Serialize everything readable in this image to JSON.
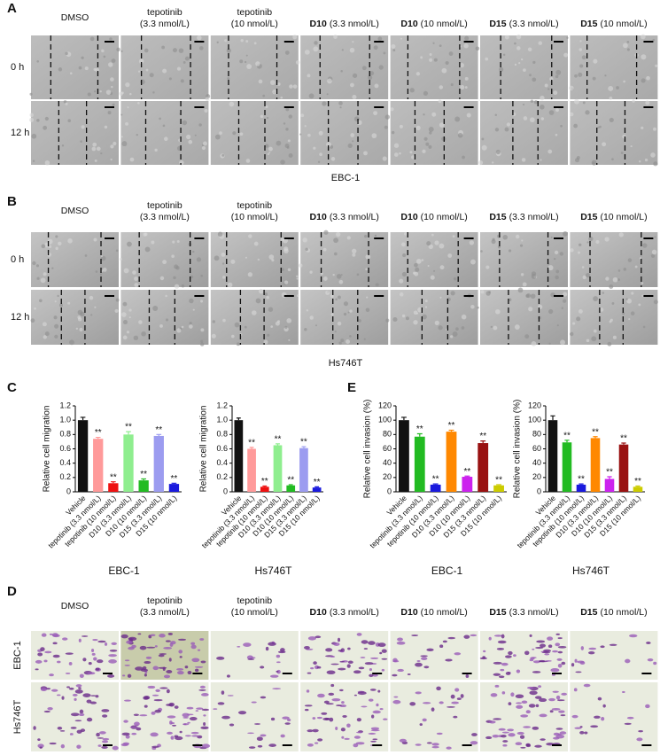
{
  "panel_a": {
    "label": "A",
    "headers": [
      {
        "text": "DMSO"
      },
      {
        "lines": [
          "tepotinib",
          "(3.3 nmol/L)"
        ]
      },
      {
        "lines": [
          "tepotinib",
          "(10 nmol/L)"
        ]
      },
      {
        "strong": "D10",
        "text": "(3.3 nmol/L)"
      },
      {
        "strong": "D10",
        "text": "(10 nmol/L)"
      },
      {
        "strong": "D15",
        "text": "(3.3 nmol/L)"
      },
      {
        "strong": "D15",
        "text": "(10 nmol/L)"
      }
    ],
    "rows": [
      "0 h",
      "12 h"
    ],
    "caption": "EBC-1"
  },
  "panel_b": {
    "label": "B",
    "headers": [
      {
        "text": "DMSO"
      },
      {
        "lines": [
          "tepotinib",
          "(3.3 nmol/L)"
        ]
      },
      {
        "lines": [
          "tepotinib",
          "(10 nmol/L)"
        ]
      },
      {
        "strong": "D10",
        "text": "(3.3 nmol/L)"
      },
      {
        "strong": "D10",
        "text": "(10 nmol/L)"
      },
      {
        "strong": "D15",
        "text": "(3.3 nmol/L)"
      },
      {
        "strong": "D15",
        "text": "(10 nmol/L)"
      }
    ],
    "rows": [
      "0 h",
      "12 h"
    ],
    "caption": "Hs746T"
  },
  "panel_c_label": "C",
  "panel_e_label": "E",
  "chart_data": [
    {
      "type": "bar",
      "ylabel": "Relative cell migration",
      "xlabel": "EBC-1",
      "categories": [
        "Vehicle",
        "tepotinib (3.3 nmol/L)",
        "tepotinib (10 nmol/L)",
        "D10 (3.3 nmol/L)",
        "D10 (10 nmol/L)",
        "D15 (3.3 nmol/L)",
        "D15 (10 nmol/L)"
      ],
      "values": [
        1.0,
        0.74,
        0.12,
        0.8,
        0.16,
        0.78,
        0.11
      ],
      "errors": [
        0.04,
        0.02,
        0.02,
        0.04,
        0.02,
        0.02,
        0.01
      ],
      "colors": [
        "#111111",
        "#ff9a9a",
        "#ee1111",
        "#8fee8f",
        "#22bb22",
        "#9c9cf0",
        "#1a1add"
      ],
      "annotations": [
        null,
        "**",
        "**",
        "**",
        "**",
        "**",
        "**"
      ],
      "ylim": [
        0,
        1.2
      ],
      "yticks": [
        0,
        0.2,
        0.4,
        0.6,
        0.8,
        {
          "value": 1,
          "label": "1.0"
        },
        1.2
      ]
    },
    {
      "type": "bar",
      "ylabel": "Relative cell migration",
      "xlabel": "Hs746T",
      "categories": [
        "Vehicle",
        "tepotinib (3.3 nmol/L)",
        "tepotinib (10 nmol/L)",
        "D10 (3.3 nmol/L)",
        "D10 (10 nmol/L)",
        "D15 (3.3 nmol/L)",
        "D15 (10 nmol/L)"
      ],
      "values": [
        1.0,
        0.6,
        0.07,
        0.65,
        0.09,
        0.61,
        0.06
      ],
      "errors": [
        0.03,
        0.02,
        0.01,
        0.02,
        0.01,
        0.02,
        0.01
      ],
      "colors": [
        "#111111",
        "#ff9a9a",
        "#ee1111",
        "#8fee8f",
        "#22bb22",
        "#9c9cf0",
        "#1a1add"
      ],
      "annotations": [
        null,
        "**",
        "**",
        "**",
        "**",
        "**",
        "**"
      ],
      "ylim": [
        0,
        1.2
      ],
      "yticks": [
        0,
        0.2,
        0.4,
        0.6,
        0.8,
        {
          "value": 1,
          "label": "1.0"
        },
        1.2
      ]
    },
    {
      "type": "bar",
      "ylabel": "Relative cell invasion (%)",
      "xlabel": "EBC-1",
      "categories": [
        "Vehicle",
        "tepotinib (3.3 nmol/L)",
        "tepotinib (10 nmol/L)",
        "D10 (3.3 nmol/L)",
        "D10 (10 nmol/L)",
        "D15 (3.3 nmol/L)",
        "D15 (10 nmol/L)"
      ],
      "values": [
        100,
        77,
        10,
        84,
        21,
        68,
        9
      ],
      "errors": [
        4,
        4,
        1,
        2,
        1,
        3,
        1
      ],
      "colors": [
        "#111111",
        "#22bb22",
        "#1a1add",
        "#ff8800",
        "#cc22ee",
        "#991111",
        "#cccc00"
      ],
      "annotations": [
        null,
        "**",
        "**",
        "**",
        "**",
        "**",
        "**"
      ],
      "ylim": [
        0,
        120
      ],
      "yticks": [
        0,
        20,
        40,
        60,
        80,
        100,
        120
      ]
    },
    {
      "type": "bar",
      "ylabel": "Relative cell invasion (%)",
      "xlabel": "Hs746T",
      "categories": [
        "Vehicle",
        "tepotinib (3.3 nmol/L)",
        "tepotinib (10 nmol/L)",
        "D10 (3.3 nmol/L)",
        "D10 (10 nmol/L)",
        "D15 (3.3 nmol/L)",
        "D15 (10 nmol/L)"
      ],
      "values": [
        100,
        69,
        10,
        75,
        18,
        66,
        7
      ],
      "errors": [
        6,
        3,
        1,
        2,
        3,
        2,
        1
      ],
      "colors": [
        "#111111",
        "#22bb22",
        "#1a1add",
        "#ff8800",
        "#cc22ee",
        "#991111",
        "#cccc00"
      ],
      "annotations": [
        null,
        "**",
        "**",
        "**",
        "**",
        "**",
        "**"
      ],
      "ylim": [
        0,
        120
      ],
      "yticks": [
        0,
        20,
        40,
        60,
        80,
        100,
        120
      ]
    }
  ],
  "panel_d": {
    "label": "D",
    "headers": [
      {
        "text": "DMSO"
      },
      {
        "lines": [
          "tepotinib",
          "(3.3 nmol/L)"
        ]
      },
      {
        "lines": [
          "tepotinib",
          "(10 nmol/L)"
        ]
      },
      {
        "strong": "D10",
        "text": "(3.3 nmol/L)"
      },
      {
        "strong": "D10",
        "text": "(10 nmol/L)"
      },
      {
        "strong": "D15",
        "text": "(3.3 nmol/L)"
      },
      {
        "strong": "D15",
        "text": "(10 nmol/L)"
      }
    ],
    "rows": [
      "EBC-1",
      "Hs746T"
    ]
  }
}
